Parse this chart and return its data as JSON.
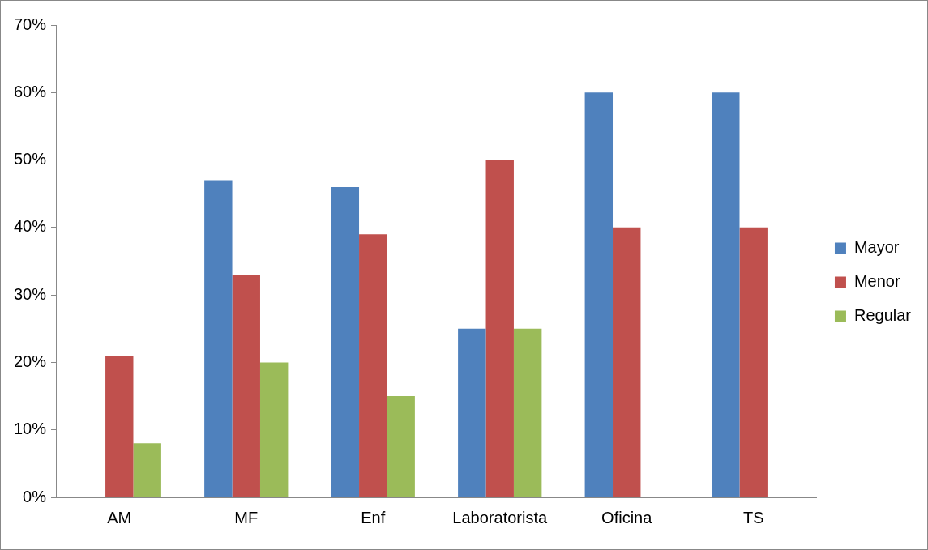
{
  "chart_data": {
    "type": "bar",
    "categories": [
      "AM",
      "MF",
      "Enf",
      "Laboratorista",
      "Oficina",
      "TS"
    ],
    "series": [
      {
        "name": "Mayor",
        "color": "#4f81bd",
        "values": [
          null,
          47,
          46,
          25,
          60,
          60
        ]
      },
      {
        "name": "Menor",
        "color": "#c0504d",
        "values": [
          21,
          33,
          39,
          50,
          40,
          40
        ]
      },
      {
        "name": "Regular",
        "color": "#9bbb59",
        "values": [
          8,
          20,
          15,
          25,
          null,
          null
        ]
      }
    ],
    "ylim": [
      0,
      70
    ],
    "yticks": [
      {
        "value": 0,
        "label": "0%"
      },
      {
        "value": 10,
        "label": "10%"
      },
      {
        "value": 20,
        "label": "20%"
      },
      {
        "value": 30,
        "label": "30%"
      },
      {
        "value": 40,
        "label": "40%"
      },
      {
        "value": 50,
        "label": "50%"
      },
      {
        "value": 60,
        "label": "60%"
      },
      {
        "value": 70,
        "label": "70%"
      }
    ],
    "grid": false,
    "legend": "right"
  }
}
